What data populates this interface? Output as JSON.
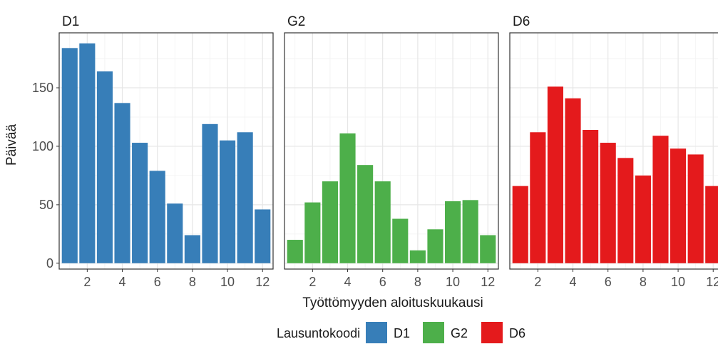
{
  "chart_data": {
    "type": "bar",
    "facets": [
      {
        "name": "D1",
        "color": "#377EB8",
        "x": [
          1,
          2,
          3,
          4,
          5,
          6,
          7,
          8,
          9,
          10,
          11,
          12
        ],
        "values": [
          184,
          188,
          164,
          137,
          103,
          79,
          51,
          24,
          119,
          105,
          112,
          46
        ]
      },
      {
        "name": "G2",
        "color": "#4DAF4A",
        "x": [
          1,
          2,
          3,
          4,
          5,
          6,
          7,
          8,
          9,
          10,
          11,
          12
        ],
        "values": [
          20,
          52,
          70,
          111,
          84,
          70,
          38,
          11,
          29,
          53,
          54,
          24
        ]
      },
      {
        "name": "D6",
        "color": "#E41A1C",
        "x": [
          1,
          2,
          3,
          4,
          5,
          6,
          7,
          8,
          9,
          10,
          11,
          12
        ],
        "values": [
          66,
          112,
          151,
          141,
          114,
          103,
          90,
          75,
          109,
          98,
          93,
          66
        ]
      }
    ],
    "xlabel": "Työttömyyden aloituskuukausi",
    "ylabel": "Päivää",
    "xticks": [
      2,
      4,
      6,
      8,
      10,
      12
    ],
    "yticks": [
      0,
      50,
      100,
      150
    ],
    "xlim": [
      0.4,
      12.6
    ],
    "ylim": [
      -5,
      197
    ],
    "grid": true,
    "legend": {
      "title": "Lausuntokoodi",
      "position": "bottom",
      "entries": [
        {
          "label": "D1",
          "color": "#377EB8"
        },
        {
          "label": "G2",
          "color": "#4DAF4A"
        },
        {
          "label": "D6",
          "color": "#E41A1C"
        }
      ]
    }
  }
}
